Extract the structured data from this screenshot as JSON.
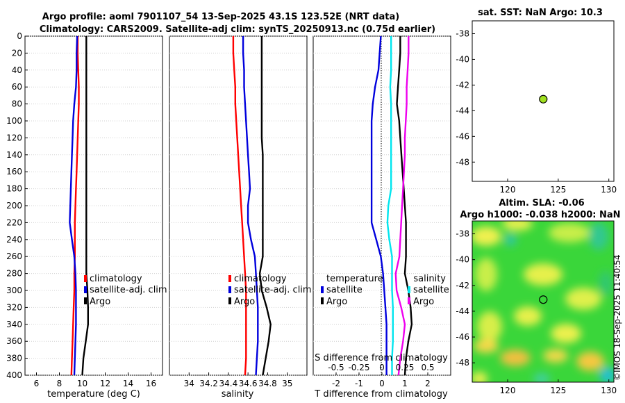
{
  "titles": {
    "line1": "Argo profile: aoml 7901107_54 13-Sep-2025 43.1S 123.52E (NRT data)",
    "line2": "Climatology: CARS2009. Satellite-adj clim: synTS_20250913.nc (0.75d earlier)",
    "sst_title": "sat. SST: NaN Argo: 10.3",
    "sla_line1": "Altim. SLA: -0.06",
    "sla_line2": "Argo h1000: -0.038 h2000: NaN",
    "watermark": "©IMOS 18-Sep-2025 11:40:54"
  },
  "colors": {
    "climatology": "#ff0000",
    "satellite_adj": "#0000dd",
    "argo": "#000000",
    "s_satellite": "#00e5ee",
    "s_argo": "#ee00ee",
    "marker": "#a0e020"
  },
  "chart_data": [
    {
      "type": "line",
      "id": "temperature",
      "xlabel": "temperature (deg C)",
      "ylabel": "",
      "xlim": [
        5,
        17
      ],
      "ylim": [
        400,
        0
      ],
      "xticks": [
        6,
        8,
        10,
        12,
        14,
        16
      ],
      "yticks": [
        0,
        20,
        40,
        60,
        80,
        100,
        120,
        140,
        160,
        180,
        200,
        220,
        240,
        260,
        280,
        300,
        320,
        340,
        360,
        380,
        400
      ],
      "depth": [
        0,
        20,
        40,
        60,
        80,
        100,
        120,
        140,
        160,
        180,
        200,
        220,
        240,
        260,
        280,
        300,
        320,
        340,
        360,
        380,
        400
      ],
      "series": [
        {
          "name": "climatology",
          "color_key": "climatology",
          "values": [
            9.6,
            9.6,
            9.65,
            9.7,
            9.7,
            9.65,
            9.6,
            9.55,
            9.5,
            9.45,
            9.4,
            9.35,
            9.35,
            9.35,
            9.3,
            9.3,
            9.25,
            9.2,
            9.15,
            9.1,
            9.05
          ]
        },
        {
          "name": "satellite-adj. clim",
          "color_key": "satellite_adj",
          "values": [
            9.55,
            9.5,
            9.5,
            9.45,
            9.3,
            9.2,
            9.15,
            9.1,
            9.05,
            9.0,
            8.95,
            8.9,
            9.1,
            9.3,
            9.4,
            9.45,
            9.45,
            9.45,
            9.4,
            9.35,
            9.3
          ]
        },
        {
          "name": "Argo",
          "color_key": "argo",
          "values": [
            10.35,
            10.35,
            10.35,
            10.35,
            10.35,
            10.35,
            10.35,
            10.35,
            10.35,
            10.35,
            10.35,
            10.35,
            10.35,
            10.35,
            10.35,
            10.45,
            10.5,
            10.5,
            10.3,
            10.1,
            10.0
          ]
        }
      ],
      "legend": [
        "climatology",
        "satellite-adj. clim",
        "Argo"
      ],
      "legend_position": "lower-right"
    },
    {
      "type": "line",
      "id": "salinity",
      "xlabel": "salinity",
      "xlim": [
        33.8,
        35.2
      ],
      "ylim": [
        400,
        0
      ],
      "xticks": [
        34,
        34.2,
        34.4,
        34.6,
        34.8,
        35
      ],
      "depth": [
        0,
        20,
        40,
        60,
        80,
        100,
        120,
        140,
        160,
        180,
        200,
        220,
        240,
        260,
        280,
        300,
        320,
        340,
        360,
        380,
        400
      ],
      "series": [
        {
          "name": "climatology",
          "color_key": "climatology",
          "values": [
            34.45,
            34.45,
            34.46,
            34.47,
            34.47,
            34.48,
            34.49,
            34.5,
            34.51,
            34.52,
            34.53,
            34.54,
            34.55,
            34.56,
            34.57,
            34.58,
            34.58,
            34.58,
            34.58,
            34.58,
            34.57
          ]
        },
        {
          "name": "satellite-adj. clim",
          "color_key": "satellite_adj",
          "values": [
            34.55,
            34.55,
            34.56,
            34.56,
            34.57,
            34.58,
            34.59,
            34.6,
            34.61,
            34.62,
            34.6,
            34.6,
            34.63,
            34.67,
            34.68,
            34.69,
            34.7,
            34.7,
            34.7,
            34.69,
            34.68
          ]
        },
        {
          "name": "Argo",
          "color_key": "argo",
          "values": [
            34.74,
            34.74,
            34.74,
            34.74,
            34.74,
            34.74,
            34.74,
            34.75,
            34.75,
            34.75,
            34.75,
            34.75,
            34.75,
            34.75,
            34.72,
            34.74,
            34.79,
            34.83,
            34.81,
            34.78,
            34.75
          ]
        }
      ],
      "legend": [
        "climatology",
        "satellite-adj. clim",
        "Argo"
      ],
      "legend_position": "lower-right"
    },
    {
      "type": "line",
      "id": "difference",
      "xlabel": "T difference from climatology",
      "xlabel_top": "S difference from climatology",
      "xlim": [
        -3,
        3
      ],
      "ylim": [
        400,
        0
      ],
      "xticks": [
        -2,
        -1,
        0,
        1,
        2
      ],
      "xticks_top": [
        -0.5,
        -0.25,
        0,
        0.25,
        0.5
      ],
      "xticks_top_labels": [
        "-0.5",
        "-0.25",
        "0",
        "0.25",
        "0.5"
      ],
      "s_xlim": [
        -0.75,
        0.75
      ],
      "depth": [
        0,
        20,
        40,
        60,
        80,
        100,
        120,
        140,
        160,
        180,
        200,
        220,
        240,
        260,
        280,
        300,
        320,
        340,
        360,
        380,
        400
      ],
      "series": [
        {
          "name": "temperature satellite",
          "color_key": "satellite_adj",
          "values": [
            -0.05,
            -0.1,
            -0.15,
            -0.3,
            -0.4,
            -0.45,
            -0.45,
            -0.45,
            -0.45,
            -0.45,
            -0.45,
            -0.45,
            -0.25,
            -0.05,
            0.05,
            0.1,
            0.15,
            0.2,
            0.2,
            0.2,
            0.2
          ]
        },
        {
          "name": "temperature Argo",
          "color_key": "argo",
          "values": [
            0.8,
            0.8,
            0.75,
            0.7,
            0.65,
            0.75,
            0.8,
            0.85,
            0.9,
            0.95,
            1.0,
            1.05,
            1.05,
            1.05,
            1.0,
            1.15,
            1.25,
            1.3,
            1.15,
            1.05,
            1.0
          ]
        },
        {
          "name": "salinity satellite",
          "color_key": "s_satellite",
          "scale": "s",
          "values": [
            0.1,
            0.1,
            0.1,
            0.09,
            0.1,
            0.1,
            0.1,
            0.1,
            0.1,
            0.1,
            0.07,
            0.06,
            0.08,
            0.11,
            0.11,
            0.11,
            0.12,
            0.12,
            0.12,
            0.11,
            0.11
          ]
        },
        {
          "name": "salinity Argo",
          "color_key": "s_argo",
          "scale": "s",
          "values": [
            0.29,
            0.29,
            0.28,
            0.27,
            0.27,
            0.26,
            0.25,
            0.25,
            0.24,
            0.23,
            0.22,
            0.21,
            0.2,
            0.19,
            0.15,
            0.16,
            0.21,
            0.25,
            0.23,
            0.2,
            0.18
          ]
        }
      ],
      "legend_left_title": "temperature",
      "legend_left": [
        "satellite",
        "Argo"
      ],
      "legend_right_title": "salinity",
      "legend_right": [
        "satellite",
        "Argo"
      ]
    },
    {
      "type": "scatter",
      "id": "sst_map",
      "xlim": [
        116.5,
        130.5
      ],
      "ylim": [
        -49.5,
        -37
      ],
      "xticks": [
        120,
        125,
        130
      ],
      "yticks": [
        -38,
        -40,
        -42,
        -44,
        -46,
        -48
      ],
      "points": [
        {
          "x": 123.52,
          "y": -43.1
        }
      ]
    },
    {
      "type": "heatmap",
      "id": "sla_map",
      "xlim": [
        116.5,
        130.5
      ],
      "ylim": [
        -49.5,
        -37
      ],
      "xticks": [
        120,
        125,
        130
      ],
      "yticks": [
        -38,
        -40,
        -42,
        -44,
        -46,
        -48
      ],
      "points": [
        {
          "x": 123.52,
          "y": -43.1
        }
      ]
    }
  ]
}
